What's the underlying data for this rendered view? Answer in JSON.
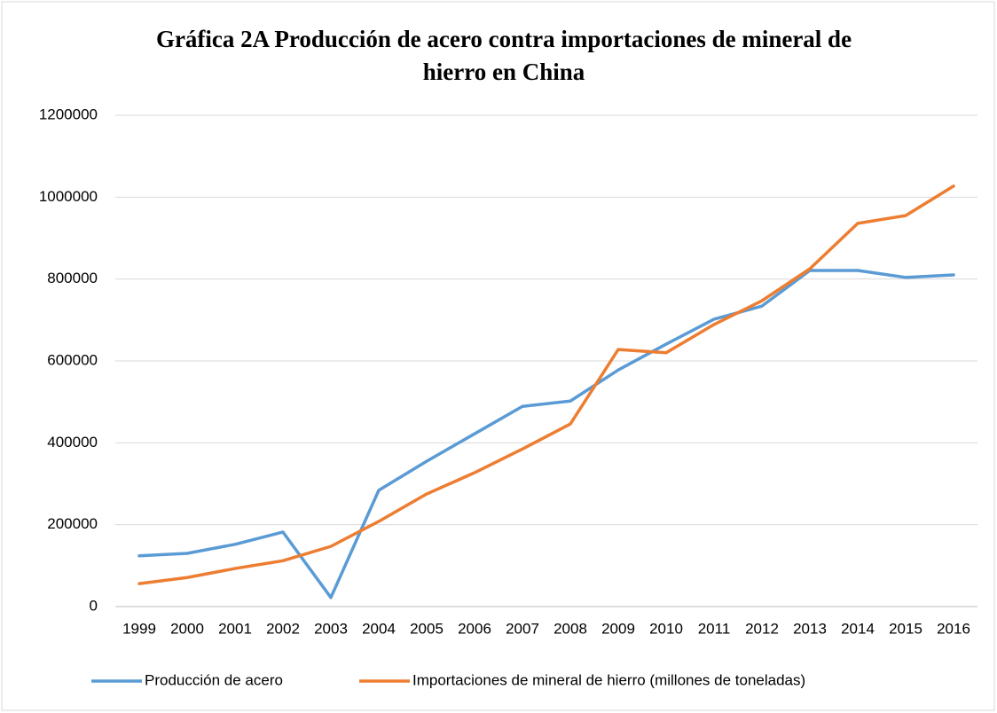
{
  "chart_data": {
    "type": "line",
    "title": "Gráfica 2A  Producción de acero contra importaciones de mineral de hierro en China",
    "categories": [
      "1999",
      "2000",
      "2001",
      "2002",
      "2003",
      "2004",
      "2005",
      "2006",
      "2007",
      "2008",
      "2009",
      "2010",
      "2011",
      "2012",
      "2013",
      "2014",
      "2015",
      "2016"
    ],
    "series": [
      {
        "name": "Producción de acero",
        "color": "#5b9bd5",
        "values": [
          124000,
          130000,
          152000,
          182000,
          22000,
          284000,
          355000,
          422000,
          489000,
          502000,
          578000,
          641000,
          702000,
          734000,
          821000,
          821000,
          804000,
          810000
        ]
      },
      {
        "name": "Importaciones de mineral de hierro (millones de toneladas)",
        "color": "#ed7d31",
        "values": [
          56000,
          71000,
          93000,
          112000,
          147000,
          208000,
          275000,
          327000,
          385000,
          446000,
          628000,
          620000,
          689000,
          747000,
          825000,
          936000,
          955000,
          1027000
        ]
      }
    ],
    "ylim": [
      0,
      1200000
    ],
    "yticks": [
      0,
      200000,
      400000,
      600000,
      800000,
      1000000,
      1200000
    ],
    "grid": true,
    "legend": "bottom"
  }
}
